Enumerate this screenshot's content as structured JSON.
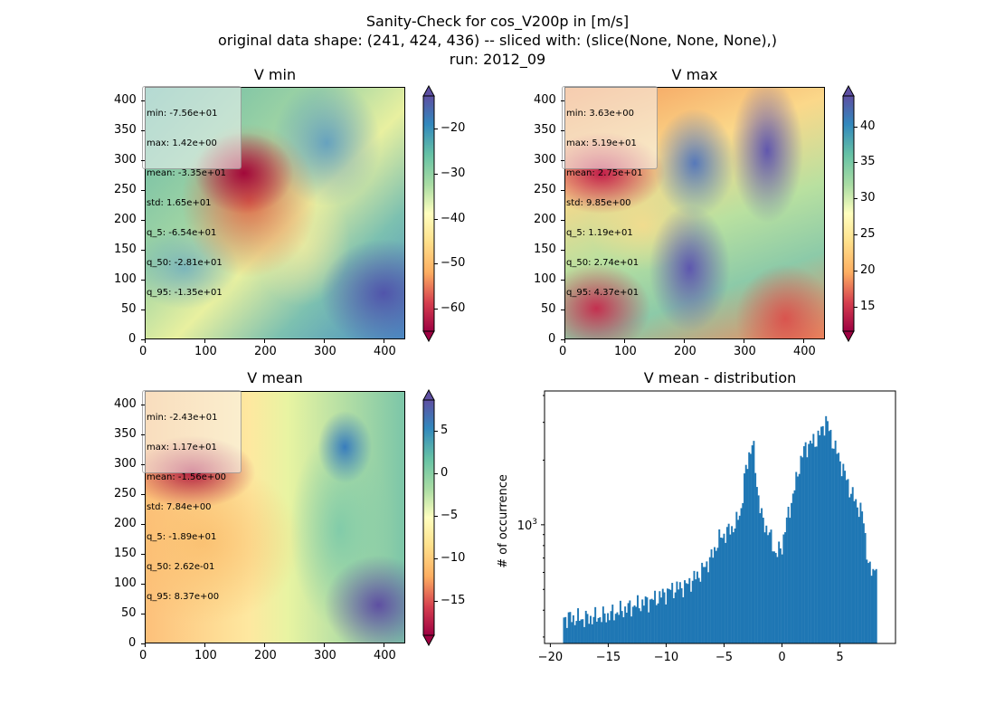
{
  "figure": {
    "title_lines": [
      "Sanity-Check for cos_V200p in [m/s]",
      "original data shape: (241, 424, 436) -- sliced with: (slice(None, None, None),)",
      "run: 2012_09"
    ]
  },
  "chart_data": [
    {
      "type": "heatmap",
      "title": "V min",
      "colormap": "Spectral",
      "x_ticks": [
        "0",
        "100",
        "200",
        "300",
        "400"
      ],
      "y_ticks": [
        "0",
        "50",
        "100",
        "150",
        "200",
        "250",
        "300",
        "350",
        "400"
      ],
      "xlim": [
        0,
        436
      ],
      "ylim": [
        0,
        424
      ],
      "colorbar_ticks": [
        "−20",
        "−30",
        "−40",
        "−50",
        "−60"
      ],
      "colorbar_range": [
        -67,
        -15
      ],
      "stats": [
        "min: -7.56e+01",
        "max: 1.42e+00",
        "mean: -3.35e+01",
        "std: 1.65e+01",
        "q_5: -6.54e+01",
        "q_50: -2.81e+01",
        "q_95: -1.35e+01"
      ]
    },
    {
      "type": "heatmap",
      "title": "V max",
      "colormap": "Spectral",
      "x_ticks": [
        "0",
        "100",
        "200",
        "300",
        "400"
      ],
      "y_ticks": [
        "0",
        "50",
        "100",
        "150",
        "200",
        "250",
        "300",
        "350",
        "400"
      ],
      "xlim": [
        0,
        436
      ],
      "ylim": [
        0,
        424
      ],
      "colorbar_ticks": [
        "40",
        "35",
        "30",
        "25",
        "20",
        "15"
      ],
      "colorbar_range": [
        11,
        44
      ],
      "stats": [
        "min: 3.63e+00",
        "max: 5.19e+01",
        "mean: 2.75e+01",
        "std: 9.85e+00",
        "q_5: 1.19e+01",
        "q_50: 2.74e+01",
        "q_95: 4.37e+01"
      ]
    },
    {
      "type": "heatmap",
      "title": "V mean",
      "colormap": "Spectral",
      "x_ticks": [
        "0",
        "100",
        "200",
        "300",
        "400"
      ],
      "y_ticks": [
        "0",
        "50",
        "100",
        "150",
        "200",
        "250",
        "300",
        "350",
        "400"
      ],
      "xlim": [
        0,
        436
      ],
      "ylim": [
        0,
        424
      ],
      "colorbar_ticks": [
        "5",
        "0",
        "−5",
        "−10",
        "−15"
      ],
      "colorbar_range": [
        -19,
        8.5
      ],
      "stats": [
        "min: -2.43e+01",
        "max: 1.17e+01",
        "mean: -1.56e+00",
        "std: 7.84e+00",
        "q_5: -1.89e+01",
        "q_50: 2.62e-01",
        "q_95: 8.37e+00"
      ]
    },
    {
      "type": "bar",
      "title": "V mean - distribution",
      "ylabel": "# of occurrence",
      "yscale": "log",
      "x_ticks": [
        "−20",
        "−15",
        "−10",
        "−5",
        "0",
        "5"
      ],
      "y_tick_label": "10",
      "y_tick_exp": "3",
      "xlim": [
        -20.5,
        9.8
      ],
      "ylim": [
        280,
        4200
      ],
      "bar_color": "#1f77b4",
      "x_start": -18.9,
      "x_end": 8.2,
      "anchors": [
        [
          -18.9,
          370
        ],
        [
          -17,
          365
        ],
        [
          -15,
          380
        ],
        [
          -13,
          415
        ],
        [
          -11,
          450
        ],
        [
          -9.5,
          500
        ],
        [
          -8.3,
          520
        ],
        [
          -7,
          600
        ],
        [
          -6,
          720
        ],
        [
          -5.5,
          850
        ],
        [
          -4.8,
          920
        ],
        [
          -4,
          1000
        ],
        [
          -3.5,
          1200
        ],
        [
          -3.2,
          1700
        ],
        [
          -2.8,
          2200
        ],
        [
          -2.5,
          2400
        ],
        [
          -2.2,
          1600
        ],
        [
          -1.8,
          1100
        ],
        [
          -1,
          880
        ],
        [
          -0.5,
          720
        ],
        [
          0,
          800
        ],
        [
          0.5,
          1100
        ],
        [
          1,
          1400
        ],
        [
          1.5,
          1900
        ],
        [
          2,
          2300
        ],
        [
          2.5,
          2400
        ],
        [
          3,
          2500
        ],
        [
          3.5,
          2800
        ],
        [
          3.8,
          3100
        ],
        [
          4.2,
          2600
        ],
        [
          5,
          2000
        ],
        [
          6,
          1400
        ],
        [
          7,
          1100
        ],
        [
          7.5,
          620
        ],
        [
          7.8,
          600
        ],
        [
          8.2,
          680
        ]
      ]
    }
  ]
}
